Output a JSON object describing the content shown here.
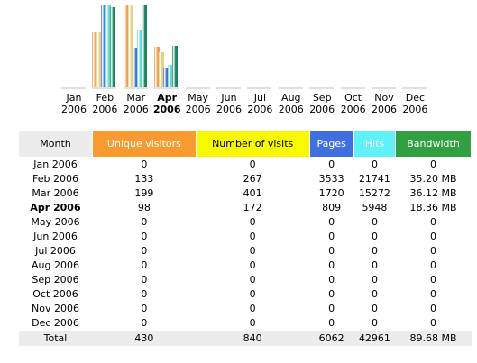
{
  "chart_data": {
    "type": "bar",
    "categories": [
      "Jan 2006",
      "Feb 2006",
      "Mar 2006",
      "Apr 2006",
      "May 2006",
      "Jun 2006",
      "Jul 2006",
      "Aug 2006",
      "Sep 2006",
      "Oct 2006",
      "Nov 2006",
      "Dec 2006"
    ],
    "category_lines": [
      [
        "Jan",
        "2006"
      ],
      [
        "Feb",
        "2006"
      ],
      [
        "Mar",
        "2006"
      ],
      [
        "Apr",
        "2006"
      ],
      [
        "May",
        "2006"
      ],
      [
        "Jun",
        "2006"
      ],
      [
        "Jul",
        "2006"
      ],
      [
        "Aug",
        "2006"
      ],
      [
        "Sep",
        "2006"
      ],
      [
        "Oct",
        "2006"
      ],
      [
        "Nov",
        "2006"
      ],
      [
        "Dec",
        "2006"
      ]
    ],
    "highlight_index": 3,
    "series": [
      {
        "name": "Unique visitors",
        "color": "#f0a050",
        "values": [
          0,
          133,
          199,
          98,
          0,
          0,
          0,
          0,
          0,
          0,
          0,
          0
        ]
      },
      {
        "name": "Number of visits",
        "color": "#e8d080",
        "values": [
          0,
          267,
          401,
          172,
          0,
          0,
          0,
          0,
          0,
          0,
          0,
          0
        ]
      },
      {
        "name": "Pages",
        "color": "#4070d8",
        "values": [
          0,
          3533,
          1720,
          809,
          0,
          0,
          0,
          0,
          0,
          0,
          0,
          0
        ]
      },
      {
        "name": "Hits",
        "color": "#60d8d0",
        "values": [
          0,
          21741,
          15272,
          5948,
          0,
          0,
          0,
          0,
          0,
          0,
          0,
          0
        ]
      },
      {
        "name": "Bandwidth",
        "color": "#208060",
        "values": [
          0,
          35.2,
          36.12,
          18.36,
          0,
          0,
          0,
          0,
          0,
          0,
          0,
          0
        ]
      }
    ]
  },
  "table": {
    "headers": [
      {
        "label": "Month",
        "bg": "#ececec",
        "color": "#000000"
      },
      {
        "label": "Unique visitors",
        "bg": "#f89a30",
        "color": "#ffffff"
      },
      {
        "label": "Number of visits",
        "bg": "#f8f800",
        "color": "#000000"
      },
      {
        "label": "Pages",
        "bg": "#4070e0",
        "color": "#ffffff"
      },
      {
        "label": "Hits",
        "bg": "#60f0f8",
        "color": "#ffffff"
      },
      {
        "label": "Bandwidth",
        "bg": "#30a040",
        "color": "#ffffff"
      }
    ],
    "rows": [
      [
        "Jan 2006",
        "0",
        "0",
        "0",
        "0",
        "0"
      ],
      [
        "Feb 2006",
        "133",
        "267",
        "3533",
        "21741",
        "35.20 MB"
      ],
      [
        "Mar 2006",
        "199",
        "401",
        "1720",
        "15272",
        "36.12 MB"
      ],
      [
        "Apr 2006",
        "98",
        "172",
        "809",
        "5948",
        "18.36 MB"
      ],
      [
        "May 2006",
        "0",
        "0",
        "0",
        "0",
        "0"
      ],
      [
        "Jun 2006",
        "0",
        "0",
        "0",
        "0",
        "0"
      ],
      [
        "Jul 2006",
        "0",
        "0",
        "0",
        "0",
        "0"
      ],
      [
        "Aug 2006",
        "0",
        "0",
        "0",
        "0",
        "0"
      ],
      [
        "Sep 2006",
        "0",
        "0",
        "0",
        "0",
        "0"
      ],
      [
        "Oct 2006",
        "0",
        "0",
        "0",
        "0",
        "0"
      ],
      [
        "Nov 2006",
        "0",
        "0",
        "0",
        "0",
        "0"
      ],
      [
        "Dec 2006",
        "0",
        "0",
        "0",
        "0",
        "0"
      ]
    ],
    "current_row_index": 3,
    "total": [
      "Total",
      "430",
      "840",
      "6062",
      "42961",
      "89.68 MB"
    ]
  }
}
